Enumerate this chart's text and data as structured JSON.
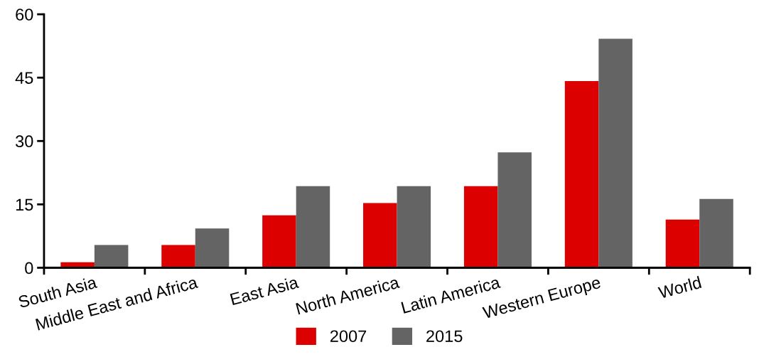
{
  "chart_data": {
    "type": "bar",
    "categories": [
      "South Asia",
      "Middle East and Africa",
      "East Asia",
      "North America",
      "Latin America",
      "Western Europe",
      "World"
    ],
    "series": [
      {
        "name": "2007",
        "color": "#dd0000",
        "values": [
          1.3,
          5.4,
          12.4,
          15.3,
          19.3,
          44.2,
          11.4
        ]
      },
      {
        "name": "2015",
        "color": "#646464",
        "values": [
          5.4,
          9.3,
          19.3,
          19.3,
          27.3,
          54.2,
          16.3
        ]
      }
    ],
    "ylim": [
      0,
      60
    ],
    "yticks": [
      0,
      15,
      30,
      45,
      60
    ],
    "grid": false,
    "legend": "bottom"
  }
}
